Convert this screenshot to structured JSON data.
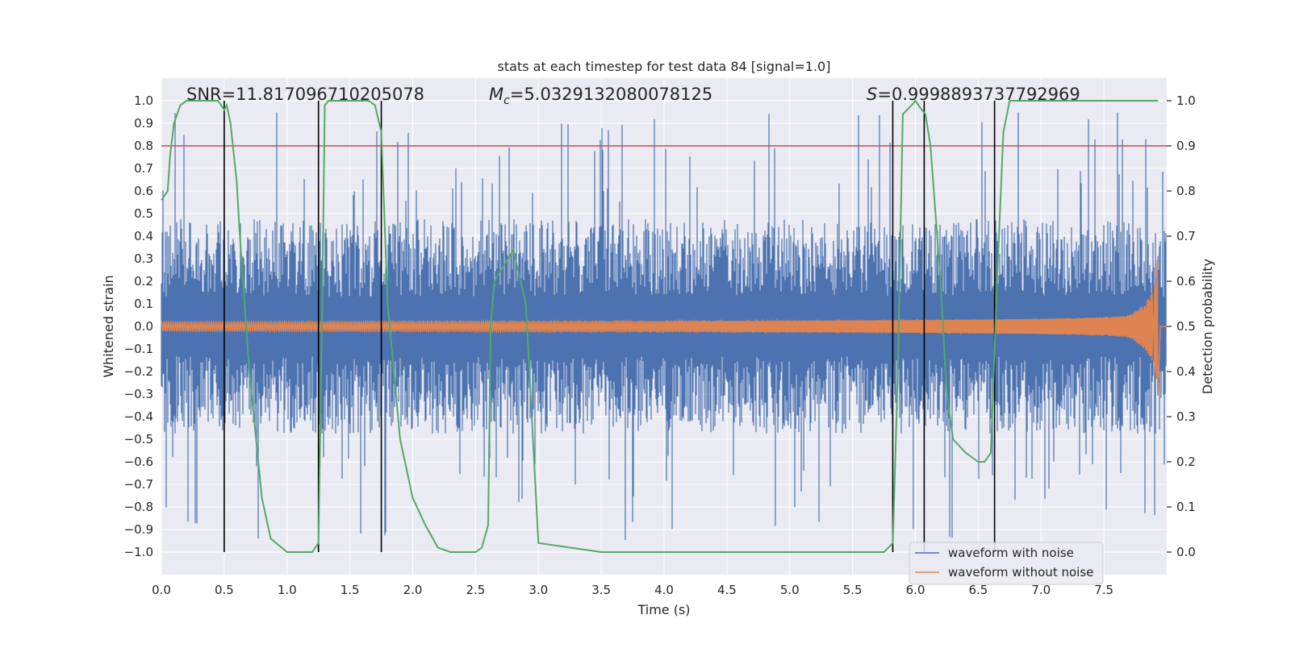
{
  "chart_data": {
    "type": "line",
    "title": "stats at each timestep for test data 84 [signal=1.0]",
    "xlabel": "Time (s)",
    "ylabel": "Whitened strain",
    "y2label": "Detection probability",
    "xlim": [
      0.0,
      8.0
    ],
    "ylim": [
      -1.1,
      1.1
    ],
    "y2lim": [
      -0.05,
      1.05
    ],
    "x_ticks": [
      0.0,
      0.5,
      1.0,
      1.5,
      2.0,
      2.5,
      3.0,
      3.5,
      4.0,
      4.5,
      5.0,
      5.5,
      6.0,
      6.5,
      7.0,
      7.5
    ],
    "x_tick_labels": [
      "0.0",
      "0.5",
      "1.0",
      "1.5",
      "2.0",
      "2.5",
      "3.0",
      "3.5",
      "4.0",
      "4.5",
      "5.0",
      "5.5",
      "6.0",
      "6.5",
      "7.0",
      "7.5"
    ],
    "y_ticks": [
      1.0,
      0.9,
      0.8,
      0.7,
      0.6,
      0.5,
      0.4,
      0.3,
      0.2,
      0.1,
      0.0,
      -0.1,
      -0.2,
      -0.3,
      -0.4,
      -0.5,
      -0.6,
      -0.7,
      -0.8,
      -0.9,
      -1.0
    ],
    "y_tick_labels": [
      "1.0",
      "0.9",
      "0.8",
      "0.7",
      "0.6",
      "0.5",
      "0.4",
      "0.3",
      "0.2",
      "0.1",
      "0.0",
      "−0.1",
      "−0.2",
      "−0.3",
      "−0.4",
      "−0.5",
      "−0.6",
      "−0.7",
      "−0.8",
      "−0.9",
      "−1.0"
    ],
    "y2_ticks": [
      1.0,
      0.9,
      0.8,
      0.7,
      0.6,
      0.5,
      0.4,
      0.3,
      0.2,
      0.1,
      0.0
    ],
    "y2_tick_labels": [
      "1.0",
      "0.9",
      "0.8",
      "0.7",
      "0.6",
      "0.5",
      "0.4",
      "0.3",
      "0.2",
      "0.1",
      "0.0"
    ],
    "annotations": {
      "snr": "SNR=11.817096710205078",
      "mc_symbol": "M",
      "mc_subscript": "c",
      "mc_value": "=5.0329132080078125",
      "s_symbol": "S",
      "s_value": "=0.9998893737792969"
    },
    "threshold": {
      "y2": 0.9,
      "color": "#c44e52"
    },
    "vertical_lines_x": [
      0.5,
      1.25,
      1.75,
      5.82,
      6.07,
      6.63
    ],
    "series": [
      {
        "name": "waveform with noise",
        "color": "#4c72b0",
        "kind": "noise",
        "amplitude_envelope": 0.95,
        "typical_abs": 0.38
      },
      {
        "name": "waveform without noise",
        "color": "#dd8452",
        "kind": "chirp",
        "x_end": 7.93,
        "start_amplitude": 0.02,
        "peak_amplitude": 0.36
      },
      {
        "name": "detection probability",
        "color": "#55a868",
        "axis": "y2",
        "x": [
          0.0,
          0.05,
          0.07,
          0.1,
          0.15,
          0.2,
          0.3,
          0.4,
          0.45,
          0.5,
          0.52,
          0.55,
          0.6,
          0.62,
          0.65,
          0.7,
          0.8,
          0.87,
          1.0,
          1.15,
          1.2,
          1.25,
          1.28,
          1.3,
          1.33,
          1.4,
          1.5,
          1.65,
          1.7,
          1.75,
          1.8,
          1.9,
          2.0,
          2.1,
          2.2,
          2.3,
          2.4,
          2.5,
          2.55,
          2.6,
          2.62,
          2.65,
          2.8,
          2.9,
          3.0,
          3.5,
          4.0,
          4.5,
          5.0,
          5.5,
          5.65,
          5.75,
          5.82,
          5.86,
          5.9,
          5.97,
          6.0,
          6.05,
          6.08,
          6.12,
          6.2,
          6.25,
          6.3,
          6.4,
          6.5,
          6.55,
          6.6,
          6.65,
          6.7,
          6.75,
          6.8,
          7.0,
          7.5,
          7.93
        ],
        "y": [
          0.78,
          0.8,
          0.88,
          0.95,
          0.99,
          1.0,
          1.0,
          1.0,
          1.0,
          0.98,
          0.99,
          0.95,
          0.82,
          0.72,
          0.6,
          0.4,
          0.12,
          0.03,
          0.0,
          0.0,
          0.0,
          0.02,
          0.55,
          0.99,
          1.0,
          1.0,
          1.0,
          1.0,
          0.99,
          0.93,
          0.55,
          0.25,
          0.12,
          0.06,
          0.01,
          0.0,
          0.0,
          0.0,
          0.01,
          0.06,
          0.5,
          0.6,
          0.67,
          0.55,
          0.02,
          0.0,
          0.0,
          0.0,
          0.0,
          0.0,
          0.0,
          0.0,
          0.02,
          0.4,
          0.97,
          0.99,
          1.0,
          0.98,
          0.97,
          0.9,
          0.6,
          0.35,
          0.25,
          0.22,
          0.2,
          0.2,
          0.22,
          0.6,
          0.93,
          1.0,
          1.0,
          1.0,
          1.0,
          1.0
        ]
      }
    ],
    "legend": {
      "position": "bottom-right",
      "entries": [
        {
          "label": "waveform with noise",
          "color": "#4c72b0"
        },
        {
          "label": "waveform without noise",
          "color": "#dd8452"
        }
      ]
    },
    "style": {
      "plot_background": "#eaeaf2",
      "grid_color": "#ffffff"
    }
  }
}
